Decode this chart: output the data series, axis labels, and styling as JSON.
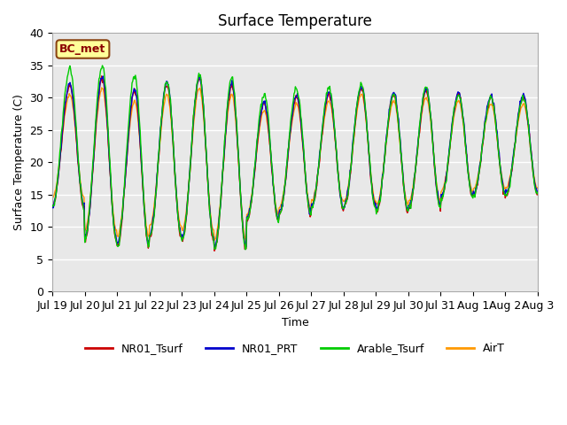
{
  "title": "Surface Temperature",
  "xlabel": "Time",
  "ylabel": "Surface Temperature (C)",
  "ylim": [
    0,
    40
  ],
  "bg_color": "#e8e8e8",
  "annotation_text": "BC_met",
  "annotation_bg": "#ffff99",
  "annotation_border": "#8B4513",
  "annotation_text_color": "#8B0000",
  "series_colors": {
    "NR01_Tsurf": "#cc0000",
    "NR01_PRT": "#0000cc",
    "Arable_Tsurf": "#00cc00",
    "AirT": "#ff9900"
  },
  "tick_dates": [
    "Jul 19",
    "Jul 20",
    "Jul 21",
    "Jul 22",
    "Jul 23",
    "Jul 24",
    "Jul 25",
    "Jul 26",
    "Jul 27",
    "Jul 28",
    "Jul 29",
    "Jul 30",
    "Jul 31",
    "Aug 1",
    "Aug 2",
    "Aug 3"
  ],
  "n_points_per_day": 48,
  "seed": 42,
  "day_mins": [
    13.0,
    8.0,
    7.0,
    8.5,
    8.0,
    6.5,
    11.0,
    12.0,
    13.0,
    13.0,
    12.5,
    13.0,
    14.5,
    15.0,
    15.0
  ],
  "day_maxs": [
    32.0,
    33.0,
    31.0,
    32.0,
    33.0,
    32.0,
    29.0,
    30.0,
    30.5,
    31.5,
    30.5,
    31.0,
    30.5,
    30.0,
    30.0
  ],
  "arable_extra_max": [
    2.5,
    2.0,
    2.5,
    0.5,
    0.5,
    1.0,
    1.5,
    1.5,
    1.0,
    0.5,
    0.0,
    0.5,
    0.0,
    0.0,
    0.0
  ],
  "figsize": [
    6.4,
    4.8
  ],
  "dpi": 100
}
